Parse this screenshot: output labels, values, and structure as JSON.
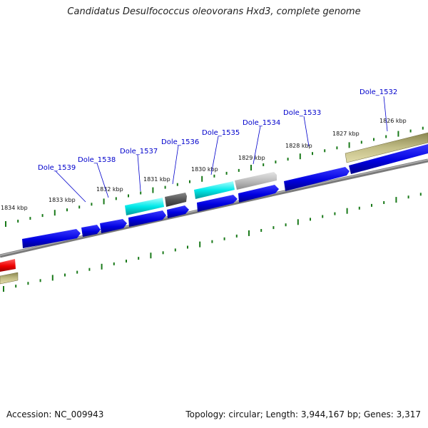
{
  "title": "Candidatus Desulfococcus oleovorans Hxd3, complete genome",
  "accession": "Accession: NC_009943",
  "summary": "Topology: circular; Length: 3,944,167 bp; Genes: 3,317",
  "colors": {
    "cds_forward": "#0000ee",
    "cds_reverse": "#0000ee",
    "trna": "#00eeee",
    "pseudo_dark": "#555555",
    "pseudo_light": "#bbbbbb",
    "region": "#b5b07a",
    "backbone": "#808080",
    "tick": "#1a7a1a",
    "other": "#ee0000"
  },
  "scale_labels": [
    "1826 kbp",
    "1827 kbp",
    "1828 kbp",
    "1829 kbp",
    "1830 kbp",
    "1831 kbp",
    "1832 kbp",
    "1833 kbp",
    "1834 kbp"
  ],
  "gene_labels": [
    "Dole_1532",
    "Dole_1533",
    "Dole_1534",
    "Dole_1535",
    "Dole_1536",
    "Dole_1537",
    "Dole_1538",
    "Dole_1539"
  ]
}
